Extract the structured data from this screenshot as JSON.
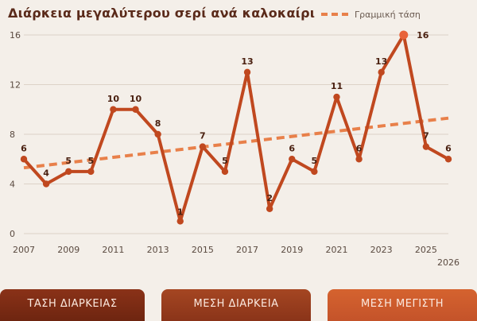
{
  "chart_data": {
    "type": "line",
    "title": "Διάρκεια μεγαλύτερου σερί ανά καλοκαίρι",
    "x": [
      2007,
      2008,
      2009,
      2010,
      2011,
      2012,
      2013,
      2014,
      2015,
      2016,
      2017,
      2018,
      2019,
      2020,
      2021,
      2022,
      2023,
      2024,
      2025,
      2026
    ],
    "series": [
      {
        "values": [
          6,
          4,
          5,
          5,
          10,
          10,
          8,
          1,
          7,
          5,
          13,
          2,
          6,
          5,
          11,
          6,
          13,
          16,
          7,
          6
        ],
        "color": "#c0481f"
      },
      {
        "name": "Γραμμική τάση",
        "type": "trend",
        "start": [
          2007,
          5.3
        ],
        "end": [
          2026,
          9.3
        ],
        "style": "dashed",
        "color": "#e8804a"
      }
    ],
    "highlight": {
      "x": 2024,
      "color": "#e8633a"
    },
    "x_ticks": [
      "2007",
      "2009",
      "2011",
      "2013",
      "2015",
      "2017",
      "2019",
      "2021",
      "2023",
      "2025",
      "2026"
    ],
    "y_ticks": [
      "0",
      "4",
      "8",
      "12",
      "16"
    ],
    "ylim": [
      0,
      16
    ],
    "grid": true,
    "legend_position": "top-right"
  },
  "buttons": {
    "trend": "ΤΑΣΗ ΔΙΑΡΚΕΙΑΣ",
    "mean": "ΜΕΣΗ ΔΙΑΡΚΕΙΑ",
    "max": "ΜΕΣΗ ΜΕΓΙΣΤΗ"
  }
}
